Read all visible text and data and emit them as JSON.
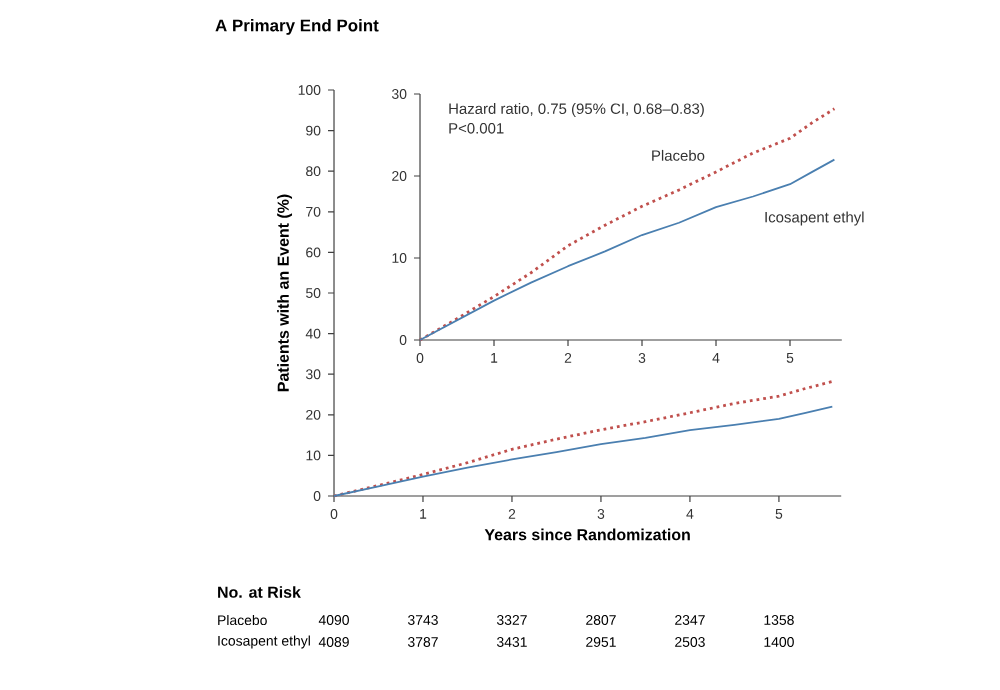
{
  "chart_data": [
    {
      "type": "line",
      "title": "A   Primary End Point",
      "xlabel": "Years since Randomization",
      "ylabel": "Patients with an Event (%)",
      "x": [
        0,
        0.5,
        1,
        1.5,
        2,
        2.5,
        3,
        3.5,
        4,
        4.5,
        5,
        5.3,
        5.6
      ],
      "series": [
        {
          "color": "#c0504d",
          "line_style": "dotted",
          "values": [
            0,
            2.6,
            5.3,
            8.2,
            11.5,
            14.0,
            16.3,
            18.3,
            20.5,
            22.8,
            24.6,
            26.5,
            28.2
          ]
        },
        {
          "color": "#4a7fb0",
          "line_style": "solid",
          "values": [
            0,
            2.4,
            4.8,
            7.0,
            9.0,
            10.8,
            12.8,
            14.3,
            16.2,
            17.5,
            19.0,
            20.5,
            22.0
          ]
        }
      ],
      "xlim": [
        0,
        5.7
      ],
      "ylim": [
        0,
        100
      ],
      "xticks": [
        0,
        1,
        2,
        3,
        4,
        5
      ],
      "yticks": [
        0,
        10,
        20,
        30,
        40,
        50,
        60,
        70,
        80,
        90,
        100
      ],
      "annotations": [
        "No. at Risk",
        "Placebo",
        "4090",
        "3743",
        "3327",
        "2807",
        "2347",
        "1358",
        "Icosapent ethyl",
        "4089",
        "3787",
        "3431",
        "2951",
        "2503",
        "1400"
      ]
    },
    {
      "type": "line",
      "x": [
        0,
        0.5,
        1,
        1.5,
        2,
        2.5,
        3,
        3.5,
        4,
        4.5,
        5,
        5.3,
        5.6
      ],
      "series": [
        {
          "name": "Placebo",
          "color": "#c0504d",
          "line_style": "dotted",
          "values": [
            0,
            2.6,
            5.3,
            8.2,
            11.5,
            14.0,
            16.3,
            18.3,
            20.5,
            22.8,
            24.6,
            26.5,
            28.2
          ]
        },
        {
          "name": "Icosapent ethyl",
          "color": "#4a7fb0",
          "line_style": "solid",
          "values": [
            0,
            2.4,
            4.8,
            7.0,
            9.0,
            10.8,
            12.8,
            14.3,
            16.2,
            17.5,
            19.0,
            20.5,
            22.0
          ]
        }
      ],
      "xlim": [
        0,
        5.7
      ],
      "ylim": [
        0,
        30
      ],
      "xticks": [
        0,
        1,
        2,
        3,
        4,
        5
      ],
      "yticks": [
        0,
        10,
        20,
        30
      ],
      "annotations": [
        "Hazard ratio, 0.75 (95% CI, 0.68–0.83)",
        "P<0.001"
      ]
    }
  ]
}
